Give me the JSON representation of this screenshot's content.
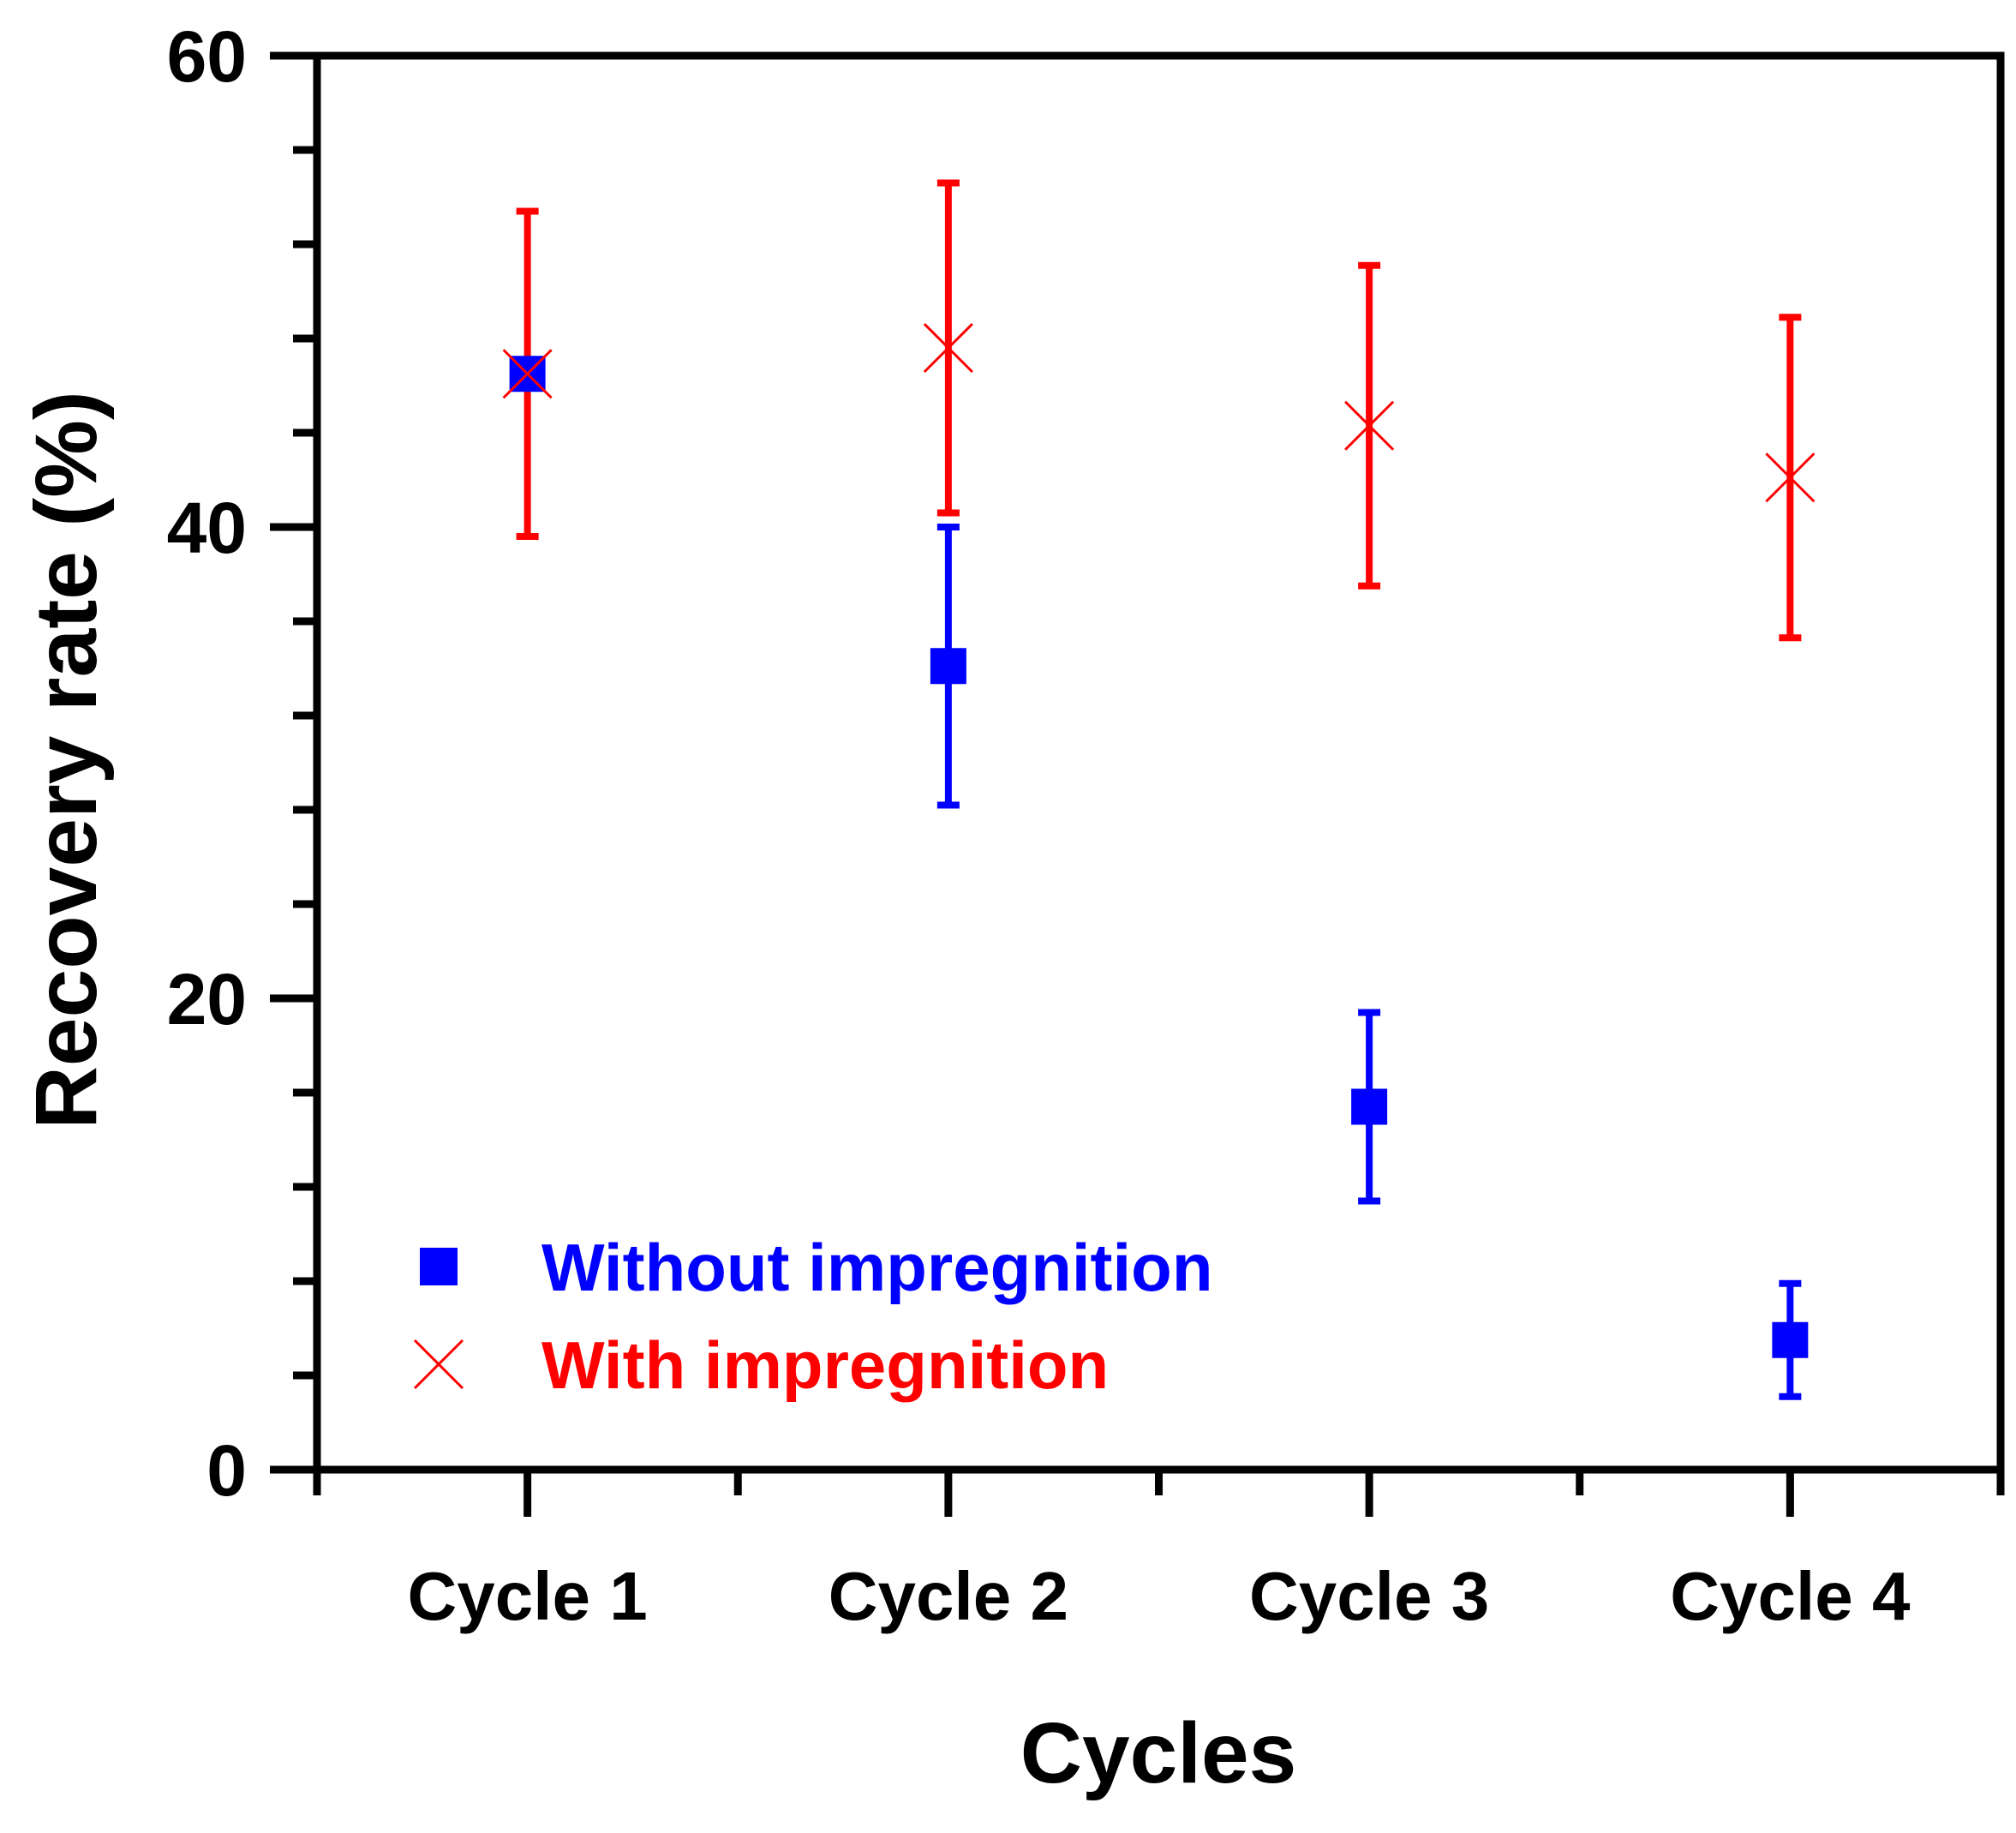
{
  "chart_data": {
    "type": "scatter",
    "title": "",
    "xlabel": "Cycles",
    "ylabel": "Recovery rate (%)",
    "categories": [
      "Cycle 1",
      "Cycle 2",
      "Cycle 3",
      "Cycle 4"
    ],
    "ylim": [
      0,
      60
    ],
    "y_ticks": [
      0,
      20,
      40,
      60
    ],
    "y_minor_step": 4,
    "grid": false,
    "legend_position": "bottom-left",
    "series": [
      {
        "name": "Without impregnition",
        "marker": "square",
        "color": "#0000ff",
        "values": [
          46.5,
          34.1,
          15.4,
          5.5
        ],
        "errors": [
          0.5,
          5.9,
          4.0,
          2.4
        ]
      },
      {
        "name": "With impregnition",
        "marker": "x",
        "color": "#ff0000",
        "values": [
          46.5,
          47.6,
          44.3,
          42.1
        ],
        "errors": [
          6.9,
          7.0,
          6.8,
          6.8
        ]
      }
    ]
  }
}
